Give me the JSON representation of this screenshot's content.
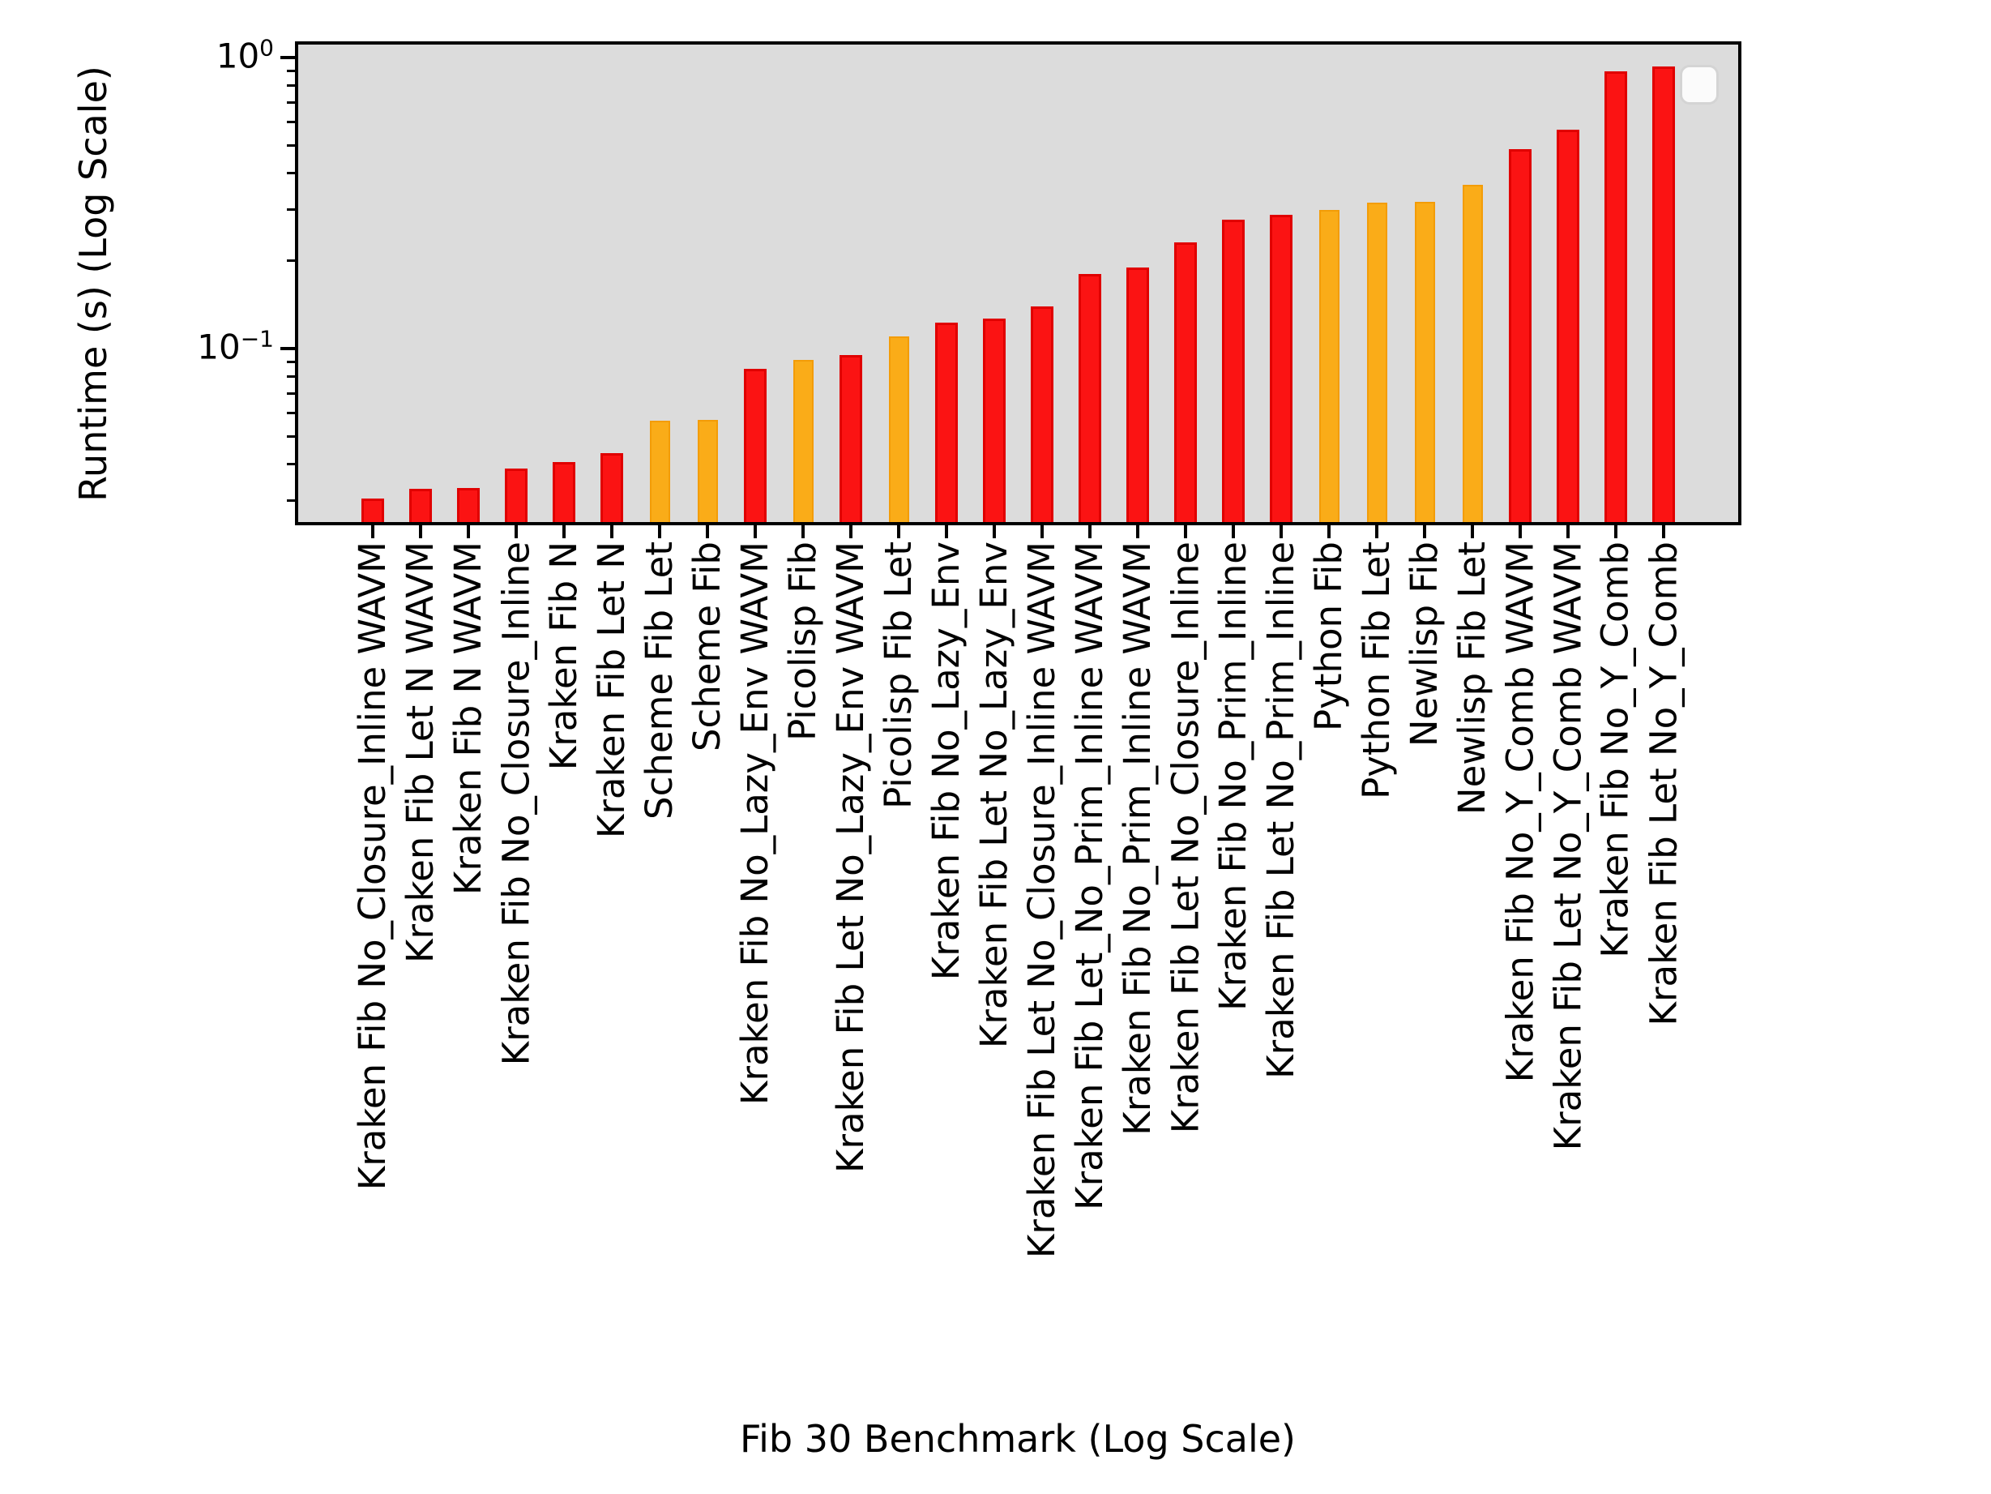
{
  "figure": {
    "ylabel": "Runtime (s) (Log Scale)",
    "xlabel": "Fib 30 Benchmark (Log Scale)"
  },
  "chart_data": {
    "type": "bar",
    "title": "",
    "xlabel": "Fib 30 Benchmark (Log Scale)",
    "ylabel": "Runtime (s) (Log Scale)",
    "yscale": "log",
    "ylim": [
      0.0254,
      1.108
    ],
    "grid": false,
    "plot_background": "#dcdcdc",
    "legend": {
      "visible": true,
      "entries": []
    },
    "colors": {
      "red": {
        "fill": "#fb1313",
        "edge": "#e00000"
      },
      "orange": {
        "fill": "#faac18",
        "edge": "#f39c07"
      }
    },
    "yticks_major": [
      {
        "base": "10",
        "exp": "0",
        "value": 1.0
      },
      {
        "base": "10",
        "exp": "−1",
        "value": 0.1
      }
    ],
    "yticks_minor_values": [
      0.9,
      0.8,
      0.7,
      0.6,
      0.5,
      0.4,
      0.3,
      0.2,
      0.09,
      0.08,
      0.07,
      0.06,
      0.05,
      0.04,
      0.03
    ],
    "categories": [
      "Kraken Fib No_Closure_Inline WAVM",
      "Kraken Fib Let N WAVM",
      "Kraken Fib N WAVM",
      "Kraken Fib No_Closure_Inline",
      "Kraken Fib N",
      "Kraken Fib Let N",
      "Scheme Fib Let",
      "Scheme Fib",
      "Kraken Fib No_Lazy_Env WAVM",
      "Picolisp Fib",
      "Kraken Fib Let No_Lazy_Env WAVM",
      "Picolisp Fib Let",
      "Kraken Fib No_Lazy_Env",
      "Kraken Fib Let No_Lazy_Env",
      "Kraken Fib Let No_Closure_Inline WAVM",
      "Kraken Fib Let_No_Prim_Inline WAVM",
      "Kraken Fib No_Prim_Inline WAVM",
      "Kraken Fib Let No_Closure_Inline",
      "Kraken Fib No_Prim_Inline",
      "Kraken Fib Let No_Prim_Inline",
      "Python Fib",
      "Python Fib Let",
      "Newlisp Fib",
      "Newlisp Fib Let",
      "Kraken Fib No_Y_Comb WAVM",
      "Kraken Fib Let No_Y_Comb WAVM",
      "Kraken Fib No_Y_Comb",
      "Kraken Fib Let No_Y_Comb"
    ],
    "values": [
      0.0305,
      0.033,
      0.0332,
      0.0386,
      0.0407,
      0.0437,
      0.0565,
      0.0567,
      0.0852,
      0.0914,
      0.095,
      0.11,
      0.1227,
      0.1268,
      0.1396,
      0.1804,
      0.19,
      0.2317,
      0.2773,
      0.2882,
      0.2995,
      0.317,
      0.3193,
      0.3654,
      0.4845,
      0.565,
      0.897,
      0.932
    ],
    "bar_colors": [
      "red",
      "red",
      "red",
      "red",
      "red",
      "red",
      "orange",
      "orange",
      "red",
      "orange",
      "red",
      "orange",
      "red",
      "red",
      "red",
      "red",
      "red",
      "red",
      "red",
      "red",
      "orange",
      "orange",
      "orange",
      "orange",
      "red",
      "red",
      "red",
      "red"
    ]
  }
}
